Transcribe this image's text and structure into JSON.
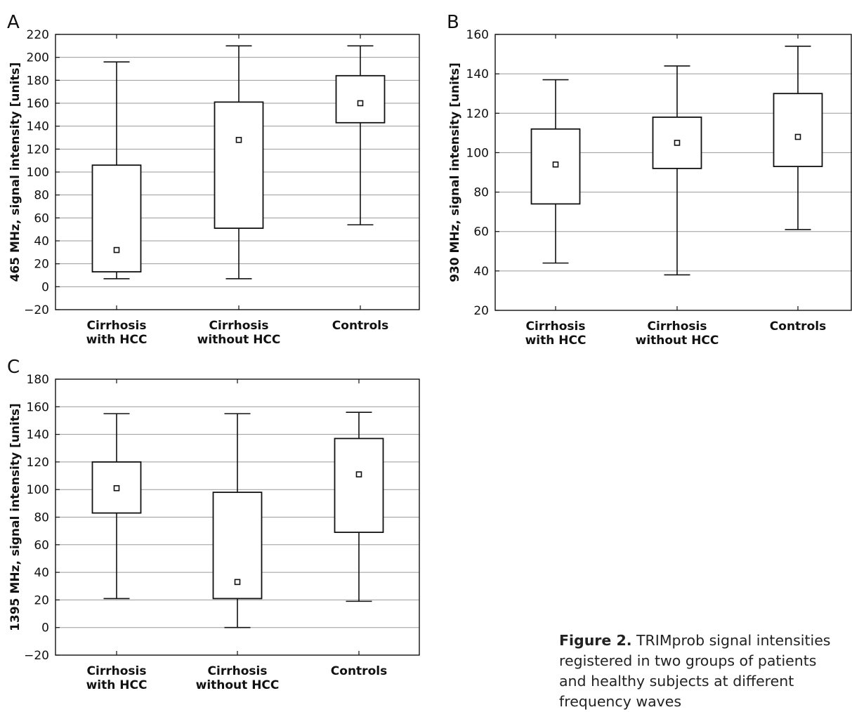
{
  "figure": {
    "caption_label": "Figure 2.",
    "caption_text": " TRIMprob signal intensities registered in two groups of patients and healthy subjects at different frequency waves"
  },
  "chart_data": [
    {
      "type": "box",
      "panel": "A",
      "ylabel": "465 MHz, signal intensity [units]",
      "ylim": [
        -20,
        220
      ],
      "yticks": [
        -20,
        0,
        20,
        40,
        60,
        80,
        100,
        120,
        140,
        160,
        180,
        200,
        220
      ],
      "grid": true,
      "categories": [
        [
          "Cirrhosis",
          "with HCC"
        ],
        [
          "Cirrhosis",
          "without HCC"
        ],
        [
          "Controls"
        ]
      ],
      "boxes": [
        {
          "whisker_low": 7,
          "q1": 13,
          "marker": 32,
          "q3": 106,
          "whisker_high": 196
        },
        {
          "whisker_low": 7,
          "q1": 51,
          "marker": 128,
          "q3": 161,
          "whisker_high": 210
        },
        {
          "whisker_low": 54,
          "q1": 143,
          "marker": 160,
          "q3": 184,
          "whisker_high": 210
        }
      ]
    },
    {
      "type": "box",
      "panel": "B",
      "ylabel": "930 MHz, signal intensity [units]",
      "ylim": [
        20,
        160
      ],
      "yticks": [
        20,
        40,
        60,
        80,
        100,
        120,
        140,
        160
      ],
      "grid": true,
      "categories": [
        [
          "Cirrhosis",
          "with HCC"
        ],
        [
          "Cirrhosis",
          "without HCC"
        ],
        [
          "Controls"
        ]
      ],
      "boxes": [
        {
          "whisker_low": 44,
          "q1": 74,
          "marker": 94,
          "q3": 112,
          "whisker_high": 137
        },
        {
          "whisker_low": 38,
          "q1": 92,
          "marker": 105,
          "q3": 118,
          "whisker_high": 144
        },
        {
          "whisker_low": 61,
          "q1": 93,
          "marker": 108,
          "q3": 130,
          "whisker_high": 154
        }
      ]
    },
    {
      "type": "box",
      "panel": "C",
      "ylabel": "1395 MHz, signal intensity [units]",
      "ylim": [
        -20,
        180
      ],
      "yticks": [
        -20,
        0,
        20,
        40,
        60,
        80,
        100,
        120,
        140,
        160,
        180
      ],
      "grid": true,
      "categories": [
        [
          "Cirrhosis",
          "with HCC"
        ],
        [
          "Cirrhosis",
          "without HCC"
        ],
        [
          "Controls"
        ]
      ],
      "boxes": [
        {
          "whisker_low": 21,
          "q1": 83,
          "marker": 101,
          "q3": 120,
          "whisker_high": 155
        },
        {
          "whisker_low": 0,
          "q1": 21,
          "marker": 33,
          "q3": 98,
          "whisker_high": 155
        },
        {
          "whisker_low": 19,
          "q1": 69,
          "marker": 111,
          "q3": 137,
          "whisker_high": 156
        }
      ]
    }
  ]
}
